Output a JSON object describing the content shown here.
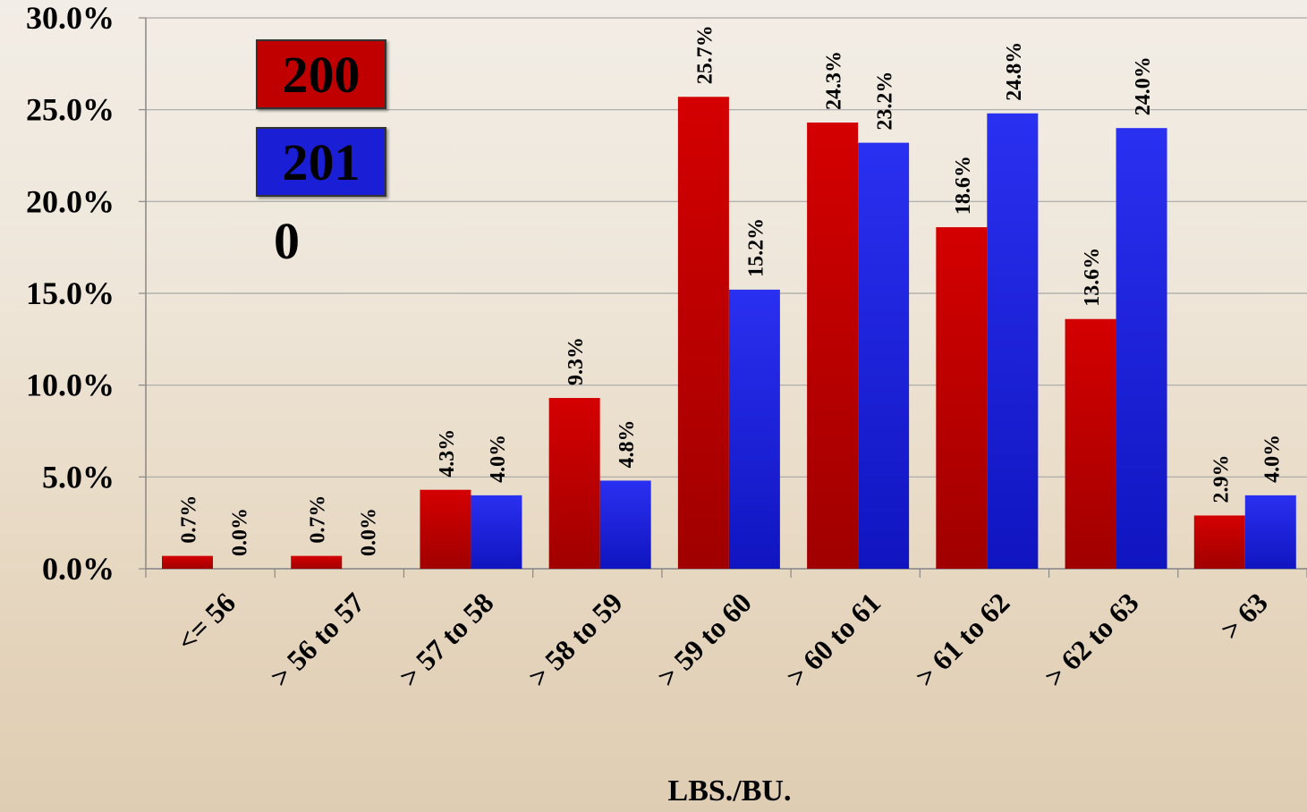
{
  "chart_data": {
    "type": "bar",
    "categories": [
      "<= 56",
      "> 56 to 57",
      "> 57 to 58",
      "> 58 to 59",
      "> 59 to 60",
      "> 60 to 61",
      "> 61 to 62",
      "> 62 to 63",
      "> 63"
    ],
    "series": [
      {
        "name": "200",
        "color": "#c00000",
        "values": [
          0.7,
          0.7,
          4.3,
          9.3,
          25.7,
          24.3,
          18.6,
          13.6,
          2.9
        ],
        "labels": [
          "0.7%",
          "0.7%",
          "4.3%",
          "9.3%",
          "25.7%",
          "24.3%",
          "18.6%",
          "13.6%",
          "2.9%"
        ]
      },
      {
        "name": "201",
        "color": "#1a1fd6",
        "values": [
          0.0,
          0.0,
          4.0,
          4.8,
          15.2,
          23.2,
          24.8,
          24.0,
          4.0
        ],
        "labels": [
          "0.0%",
          "0.0%",
          "4.0%",
          "4.8%",
          "15.2%",
          "23.2%",
          "24.8%",
          "24.0%",
          "4.0%"
        ]
      }
    ],
    "legend_extra": "0",
    "xlabel": "LBS./BU.",
    "ylabel": "",
    "ylim": [
      0,
      30
    ],
    "yticks": [
      0,
      5,
      10,
      15,
      20,
      25,
      30
    ],
    "ytick_labels": [
      "0.0%",
      "5.0%",
      "10.0%",
      "15.0%",
      "20.0%",
      "25.0%",
      "30.0%"
    ],
    "grid": true,
    "legend_position": "top-left"
  }
}
